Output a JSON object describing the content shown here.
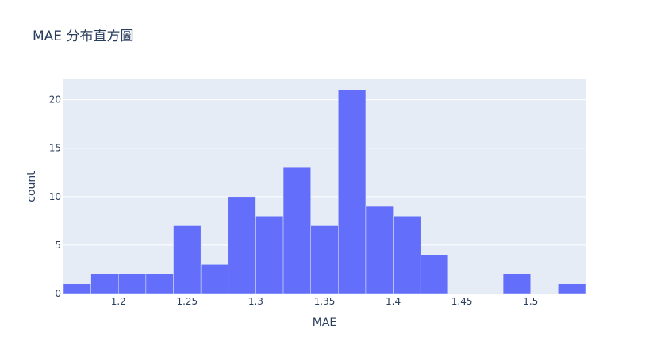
{
  "chart_data": {
    "type": "bar",
    "title": "MAE 分布直方圖",
    "xlabel": "MAE",
    "ylabel": "count",
    "bin_width": 0.02,
    "bins": [
      {
        "start": 1.16,
        "end": 1.18,
        "count": 1
      },
      {
        "start": 1.18,
        "end": 1.2,
        "count": 2
      },
      {
        "start": 1.2,
        "end": 1.22,
        "count": 2
      },
      {
        "start": 1.22,
        "end": 1.24,
        "count": 2
      },
      {
        "start": 1.24,
        "end": 1.26,
        "count": 7
      },
      {
        "start": 1.26,
        "end": 1.28,
        "count": 3
      },
      {
        "start": 1.28,
        "end": 1.3,
        "count": 10
      },
      {
        "start": 1.3,
        "end": 1.32,
        "count": 8
      },
      {
        "start": 1.32,
        "end": 1.34,
        "count": 13
      },
      {
        "start": 1.34,
        "end": 1.36,
        "count": 7
      },
      {
        "start": 1.36,
        "end": 1.38,
        "count": 21
      },
      {
        "start": 1.38,
        "end": 1.4,
        "count": 9
      },
      {
        "start": 1.4,
        "end": 1.42,
        "count": 8
      },
      {
        "start": 1.42,
        "end": 1.44,
        "count": 4
      },
      {
        "start": 1.44,
        "end": 1.46,
        "count": 0
      },
      {
        "start": 1.46,
        "end": 1.48,
        "count": 0
      },
      {
        "start": 1.48,
        "end": 1.5,
        "count": 2
      },
      {
        "start": 1.5,
        "end": 1.52,
        "count": 0
      },
      {
        "start": 1.52,
        "end": 1.54,
        "count": 1
      }
    ],
    "xlim": [
      1.16,
      1.54
    ],
    "ylim": [
      0,
      22.1
    ],
    "xticks": [
      1.2,
      1.25,
      1.3,
      1.35,
      1.4,
      1.45,
      1.5
    ],
    "xtick_labels": [
      "1.2",
      "1.25",
      "1.3",
      "1.35",
      "1.4",
      "1.45",
      "1.5"
    ],
    "yticks": [
      0,
      5,
      10,
      15,
      20
    ],
    "ytick_labels": [
      "0",
      "5",
      "10",
      "15",
      "20"
    ],
    "grid": true,
    "colors": {
      "bar": "#636efa",
      "plot_background": "#e5ecf6",
      "grid": "#ffffff",
      "text": "#2a3f5f"
    }
  }
}
